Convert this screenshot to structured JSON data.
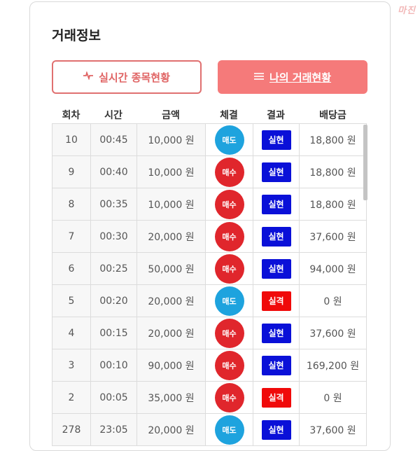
{
  "watermark": "마진",
  "section_title": "거래정보",
  "buttons": {
    "live": {
      "label": "실시간 종목현황",
      "icon": "pulse-icon"
    },
    "mine": {
      "label": "나의 거래현황",
      "icon": "list-icon"
    }
  },
  "table": {
    "headers": [
      "회차",
      "시간",
      "금액",
      "체결",
      "결과",
      "배당금"
    ],
    "rows": [
      {
        "round": "10",
        "time": "00:45",
        "amount": "10,000 원",
        "trade": "매도",
        "result": "실현",
        "payout": "18,800 원"
      },
      {
        "round": "9",
        "time": "00:40",
        "amount": "10,000 원",
        "trade": "매수",
        "result": "실현",
        "payout": "18,800 원"
      },
      {
        "round": "8",
        "time": "00:35",
        "amount": "10,000 원",
        "trade": "매수",
        "result": "실현",
        "payout": "18,800 원"
      },
      {
        "round": "7",
        "time": "00:30",
        "amount": "20,000 원",
        "trade": "매수",
        "result": "실현",
        "payout": "37,600 원"
      },
      {
        "round": "6",
        "time": "00:25",
        "amount": "50,000 원",
        "trade": "매수",
        "result": "실현",
        "payout": "94,000 원"
      },
      {
        "round": "5",
        "time": "00:20",
        "amount": "20,000 원",
        "trade": "매도",
        "result": "실격",
        "payout": "0 원"
      },
      {
        "round": "4",
        "time": "00:15",
        "amount": "20,000 원",
        "trade": "매수",
        "result": "실현",
        "payout": "37,600 원"
      },
      {
        "round": "3",
        "time": "00:10",
        "amount": "90,000 원",
        "trade": "매수",
        "result": "실현",
        "payout": "169,200 원"
      },
      {
        "round": "2",
        "time": "00:05",
        "amount": "35,000 원",
        "trade": "매수",
        "result": "실격",
        "payout": "0 원"
      },
      {
        "round": "278",
        "time": "23:05",
        "amount": "20,000 원",
        "trade": "매도",
        "result": "실현",
        "payout": "37,600 원"
      }
    ]
  },
  "colors": {
    "sell": "#1ea3de",
    "buy": "#e0262c",
    "realized": "#0a10d8",
    "disqualified": "#f00a0a"
  }
}
